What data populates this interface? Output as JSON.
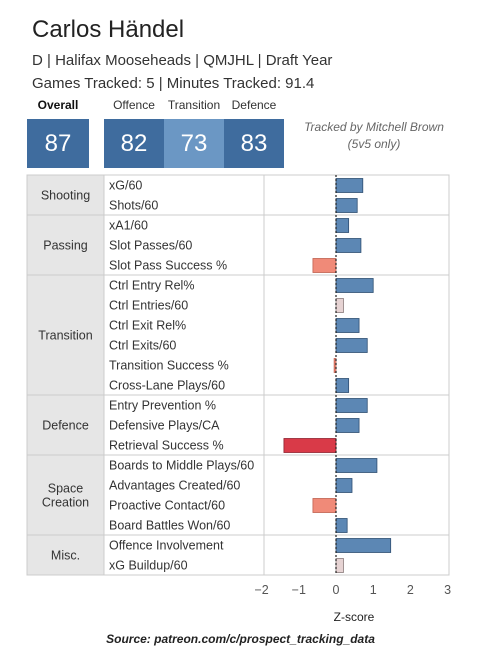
{
  "header": {
    "title": "Carlos Händel",
    "subtitle": "D | Halifax Mooseheads | QMJHL | Draft Year",
    "tracking_info": "Games Tracked: 5 | Minutes Tracked: 91.4"
  },
  "scores": {
    "overall": {
      "label": "Overall",
      "value": "87"
    },
    "offence": {
      "label": "Offence",
      "value": "82"
    },
    "transition": {
      "label": "Transition",
      "value": "73"
    },
    "defence": {
      "label": "Defence",
      "value": "83"
    }
  },
  "credit": "Tracked by Mitchell Brown (5v5 only)",
  "source": "Source: patreon.com/c/prospect_tracking_data",
  "colors": {
    "score_dark": "#3f6c9e",
    "score_light": "#6b97c4",
    "bar_positive": "#5c87b4",
    "bar_positive_stroke": "#2f4f72",
    "bar_negative_light": "#f08a78",
    "bar_negative_strong": "#d93a48",
    "bar_neutral": "#e6d3d3",
    "category_bg": "#e6e6e6"
  },
  "chart_data": {
    "type": "bar",
    "orientation": "horizontal",
    "xlabel": "Z-score",
    "xlim": [
      -2.3,
      3.3
    ],
    "xticks": [
      -2,
      -1,
      0,
      1,
      2,
      3
    ],
    "grid": false,
    "groups": [
      {
        "name": "Shooting",
        "metrics": [
          {
            "label": "xG/60",
            "value": 0.72
          },
          {
            "label": "Shots/60",
            "value": 0.57
          }
        ]
      },
      {
        "name": "Passing",
        "metrics": [
          {
            "label": "xA1/60",
            "value": 0.34
          },
          {
            "label": "Slot Passes/60",
            "value": 0.67
          },
          {
            "label": "Slot Pass Success %",
            "value": -0.62
          }
        ]
      },
      {
        "name": "Transition",
        "metrics": [
          {
            "label": "Ctrl Entry Rel%",
            "value": 1.0
          },
          {
            "label": "Ctrl Entries/60",
            "value": 0.2
          },
          {
            "label": "Ctrl Exit Rel%",
            "value": 0.62
          },
          {
            "label": "Ctrl Exits/60",
            "value": 0.84
          },
          {
            "label": "Transition Success %",
            "value": -0.05
          },
          {
            "label": "Cross-Lane Plays/60",
            "value": 0.34
          }
        ]
      },
      {
        "name": "Defence",
        "metrics": [
          {
            "label": "Entry Prevention %",
            "value": 0.84
          },
          {
            "label": "Defensive Plays/CA",
            "value": 0.62
          },
          {
            "label": "Retrieval Success %",
            "value": -1.4
          }
        ]
      },
      {
        "name": "Space Creation",
        "metrics": [
          {
            "label": "Boards to Middle Plays/60",
            "value": 1.1
          },
          {
            "label": "Advantages Created/60",
            "value": 0.43
          },
          {
            "label": "Proactive Contact/60",
            "value": -0.62
          },
          {
            "label": "Board Battles Won/60",
            "value": 0.3
          }
        ]
      },
      {
        "name": "Misc.",
        "metrics": [
          {
            "label": "Offence Involvement",
            "value": 1.47
          },
          {
            "label": "xG Buildup/60",
            "value": 0.2
          }
        ]
      }
    ]
  }
}
